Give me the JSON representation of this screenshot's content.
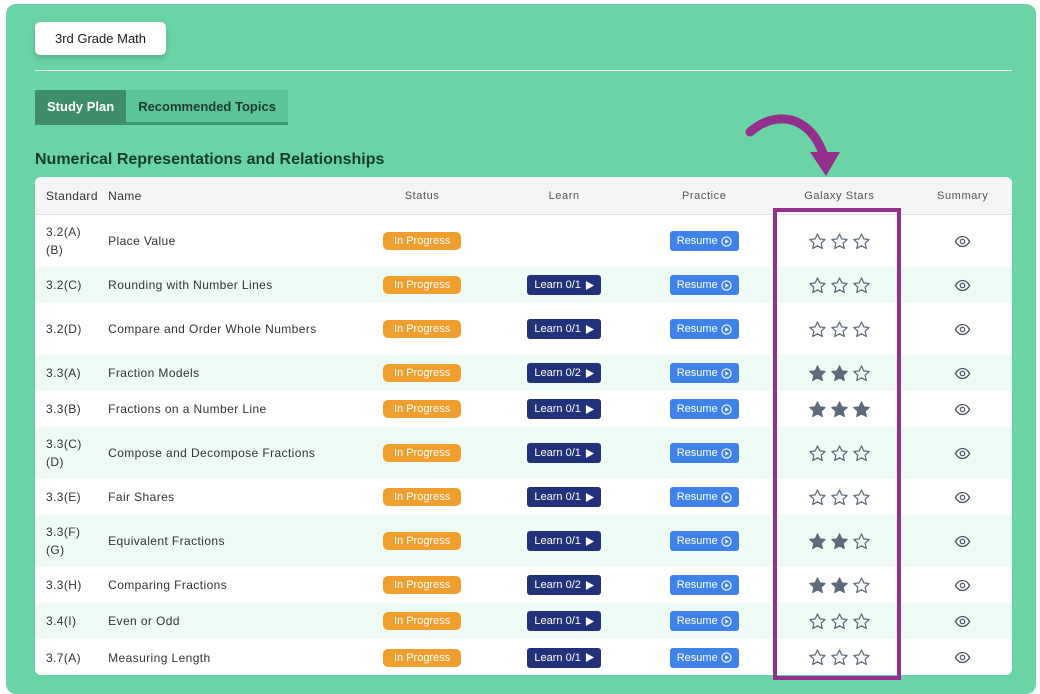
{
  "course_button": {
    "label": "3rd Grade Math"
  },
  "tabs": [
    {
      "label": "Study Plan",
      "active": true
    },
    {
      "label": "Recommended Topics",
      "active": false
    }
  ],
  "section_title": "Numerical Representations and Relationships",
  "table": {
    "headers": {
      "standard": "Standard",
      "name": "Name",
      "status": "Status",
      "learn": "Learn",
      "practice": "Practice",
      "stars": "Galaxy Stars",
      "summary": "Summary"
    },
    "rows": [
      {
        "standard_lines": [
          "3.2(A)",
          "(B)"
        ],
        "name": "Place Value",
        "status": "In Progress",
        "learn": null,
        "practice": "Resume",
        "stars_filled": 0
      },
      {
        "standard_lines": [
          "3.2(C)"
        ],
        "name": "Rounding with Number Lines",
        "status": "In Progress",
        "learn": "Learn 0/1",
        "practice": "Resume",
        "stars_filled": 0
      },
      {
        "standard_lines": [
          "3.2(D)"
        ],
        "name": "Compare and Order Whole Numbers",
        "status": "In Progress",
        "learn": "Learn 0/1",
        "practice": "Resume",
        "stars_filled": 0
      },
      {
        "standard_lines": [
          "3.3(A)"
        ],
        "name": "Fraction Models",
        "status": "In Progress",
        "learn": "Learn 0/2",
        "practice": "Resume",
        "stars_filled": 2
      },
      {
        "standard_lines": [
          "3.3(B)"
        ],
        "name": "Fractions on a Number Line",
        "status": "In Progress",
        "learn": "Learn 0/1",
        "practice": "Resume",
        "stars_filled": 3
      },
      {
        "standard_lines": [
          "3.3(C)",
          "(D)"
        ],
        "name": "Compose and Decompose Fractions",
        "status": "In Progress",
        "learn": "Learn 0/1",
        "practice": "Resume",
        "stars_filled": 0
      },
      {
        "standard_lines": [
          "3.3(E)"
        ],
        "name": "Fair Shares",
        "status": "In Progress",
        "learn": "Learn 0/1",
        "practice": "Resume",
        "stars_filled": 0
      },
      {
        "standard_lines": [
          "3.3(F)",
          "(G)"
        ],
        "name": "Equivalent Fractions",
        "status": "In Progress",
        "learn": "Learn 0/1",
        "practice": "Resume",
        "stars_filled": 2
      },
      {
        "standard_lines": [
          "3.3(H)"
        ],
        "name": "Comparing Fractions",
        "status": "In Progress",
        "learn": "Learn 0/2",
        "practice": "Resume",
        "stars_filled": 2
      },
      {
        "standard_lines": [
          "3.4(I)"
        ],
        "name": "Even or Odd",
        "status": "In Progress",
        "learn": "Learn 0/1",
        "practice": "Resume",
        "stars_filled": 0
      },
      {
        "standard_lines": [
          "3.7(A)"
        ],
        "name": "Measuring Length",
        "status": "In Progress",
        "learn": "Learn 0/1",
        "practice": "Resume",
        "stars_filled": 0
      }
    ]
  },
  "icons": {
    "learn": "play-icon",
    "practice": "play-circle-icon",
    "summary": "eye-icon",
    "star_filled": "star-filled-icon",
    "star_empty": "star-outline-icon"
  },
  "annotation": {
    "box_color": "#93308e",
    "arrow_color": "#93308e"
  },
  "colors": {
    "panel": "#6ad4a6",
    "status_badge": "#ee9f2e",
    "learn_button": "#22327a",
    "resume_button": "#3f82e8",
    "star": "#5f6b7a"
  }
}
